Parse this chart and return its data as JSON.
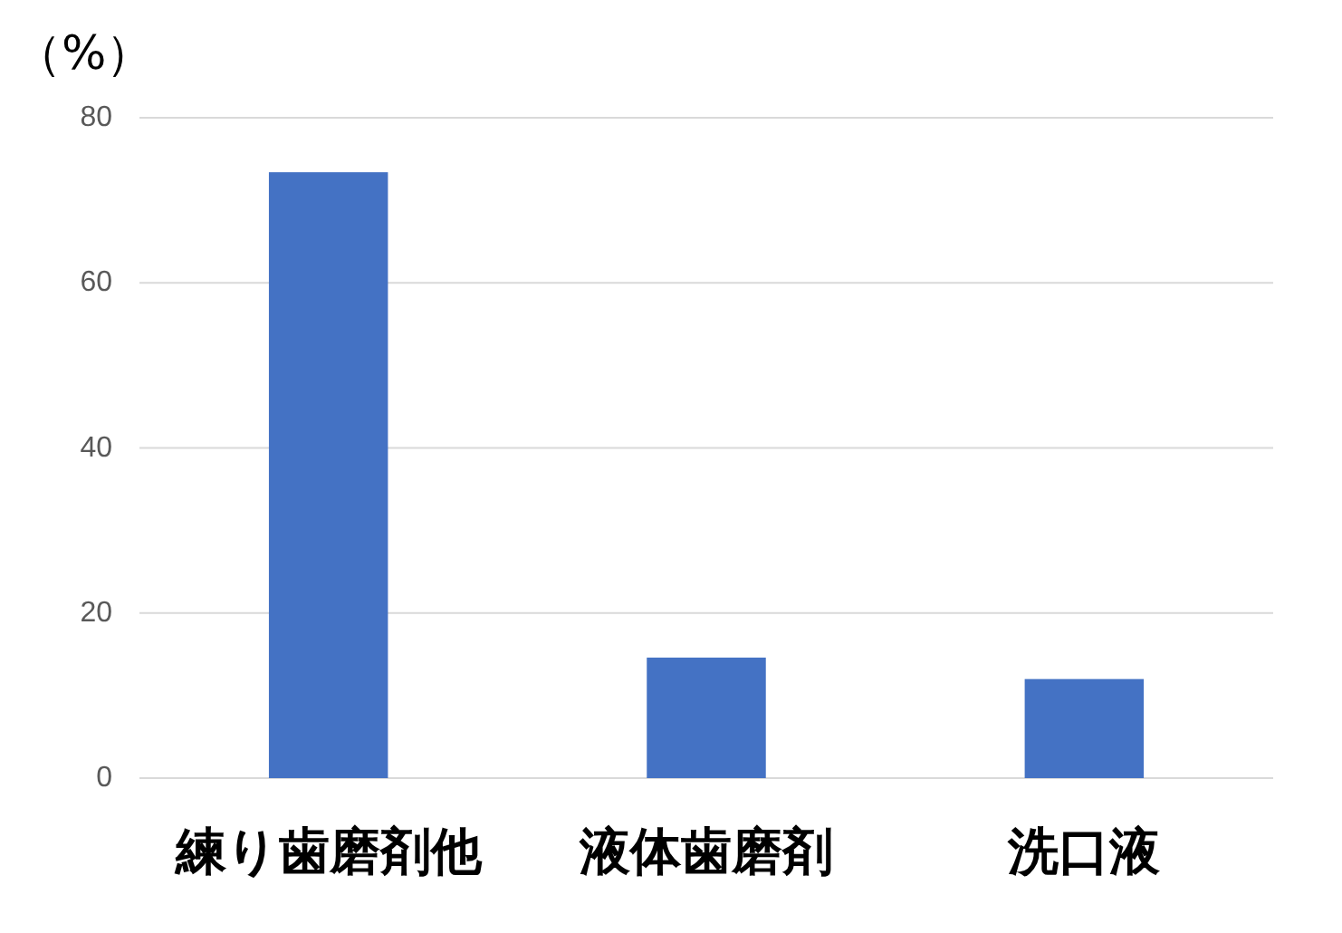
{
  "chart_data": {
    "type": "bar",
    "ylabel": "（%）",
    "categories": [
      "練り歯磨剤他",
      "液体歯磨剤",
      "洗口液"
    ],
    "values": [
      73.4,
      14.6,
      12.0
    ],
    "color": "#4472c4",
    "ylim": [
      0,
      80
    ],
    "yticks": [
      0,
      20,
      40,
      60,
      80
    ],
    "grid": "y"
  }
}
